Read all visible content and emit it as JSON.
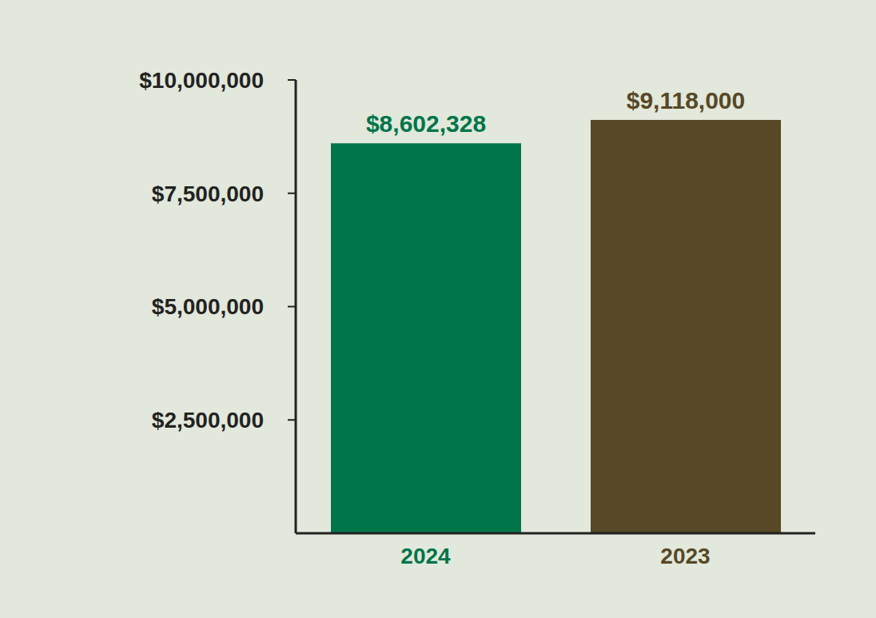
{
  "chart_data": {
    "type": "bar",
    "categories": [
      "2024",
      "2023"
    ],
    "values": [
      8602328,
      9118000
    ],
    "value_labels": [
      "$8,602,328",
      "$9,118,000"
    ],
    "colors": [
      "#00754a",
      "#574826"
    ],
    "ylim": [
      0,
      10000000
    ],
    "yticks": [
      {
        "value": 2500000,
        "label": "$2,500,000"
      },
      {
        "value": 5000000,
        "label": "$5,000,000"
      },
      {
        "value": 7500000,
        "label": "$7,500,000"
      },
      {
        "value": 10000000,
        "label": "$10,000,000"
      }
    ],
    "grid": false,
    "data_labels": true
  }
}
